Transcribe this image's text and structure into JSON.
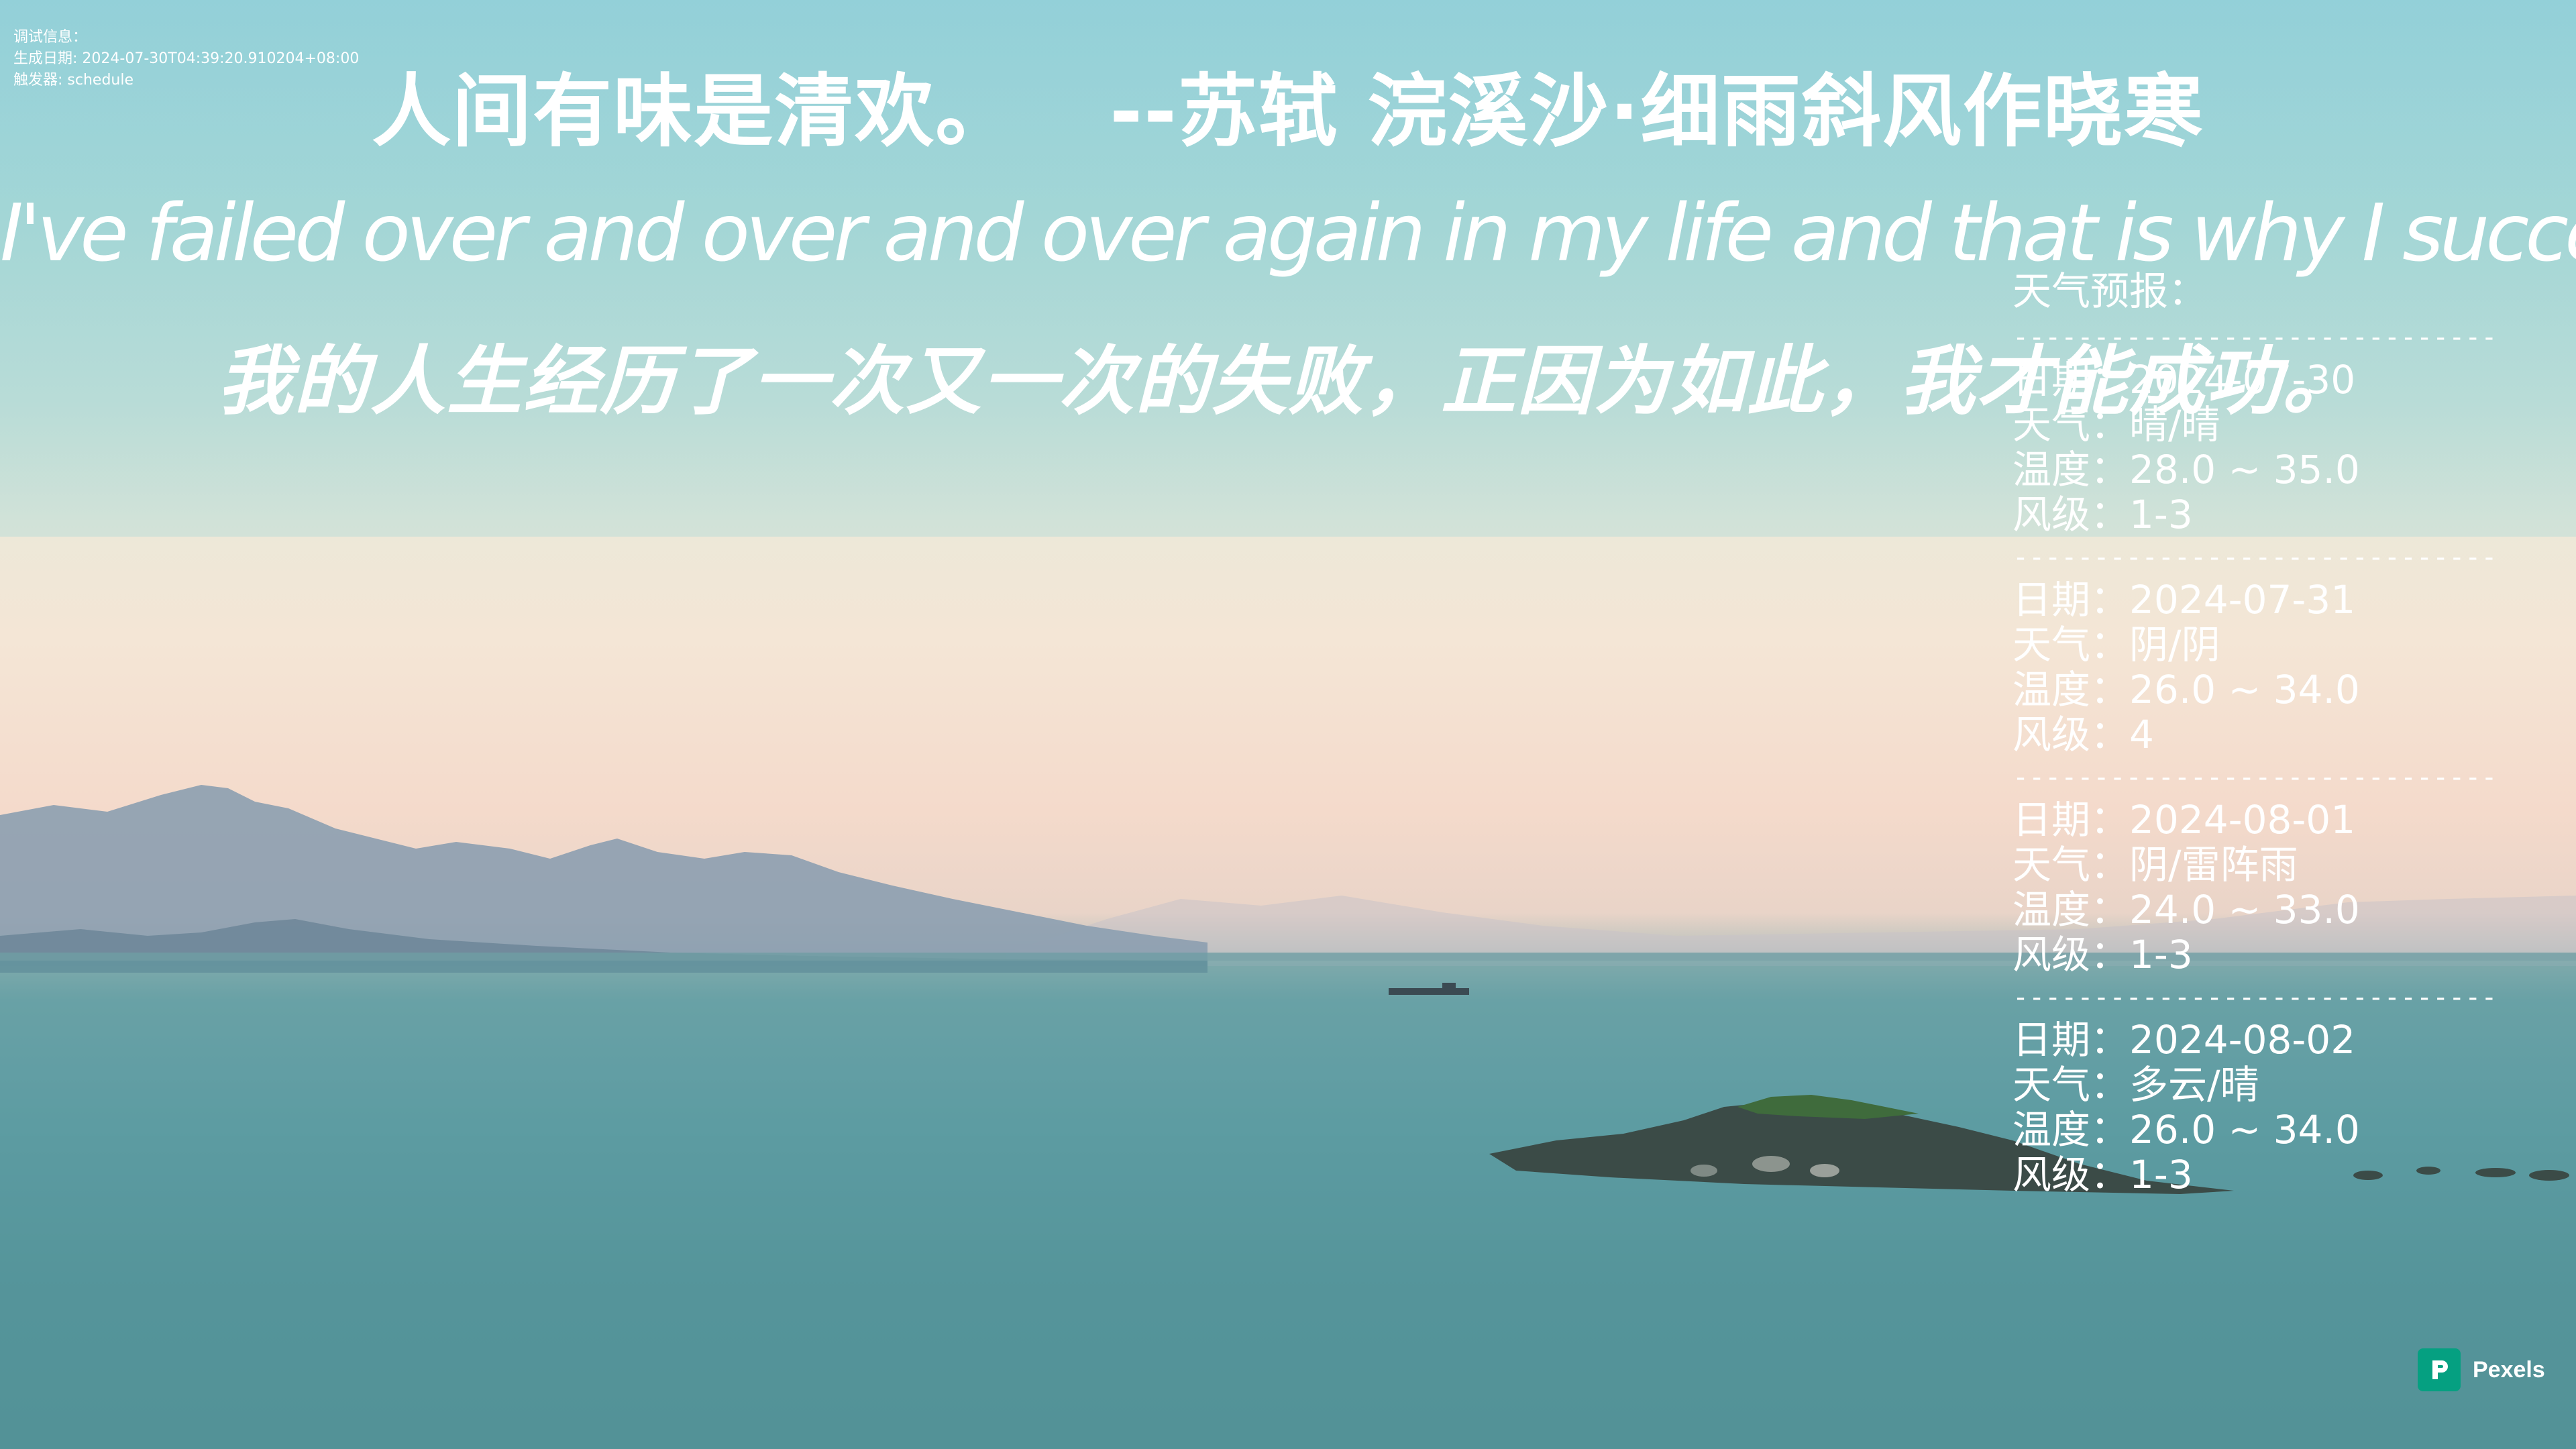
{
  "debug": {
    "heading": "调试信息：",
    "generated_label": "生成日期:",
    "generated_value": "2024-07-30T04:39:20.910204+08:00",
    "trigger_label": "触发器:",
    "trigger_value": "schedule"
  },
  "quote": {
    "chinese": "人间有味是清欢。",
    "attribution": "--苏轼 浣溪沙·细雨斜风作晓寒",
    "english": "I've failed over and over and over again in my life and that is why I succeed.",
    "translation": "我的人生经历了一次又一次的失败，正因为如此，我才能成功。"
  },
  "weather": {
    "title": "天气预报：",
    "divider": "------------------------------",
    "labels": {
      "date": "日期",
      "weather": "天气",
      "temperature": "温度",
      "wind": "风级"
    },
    "days": [
      {
        "date": "2024-07-30",
        "weather": "晴/晴",
        "temperature": "28.0 ~ 35.0",
        "wind": "1-3"
      },
      {
        "date": "2024-07-31",
        "weather": "阴/阴",
        "temperature": "26.0 ~ 34.0",
        "wind": "4"
      },
      {
        "date": "2024-08-01",
        "weather": "阴/雷阵雨",
        "temperature": "24.0 ~ 33.0",
        "wind": "1-3"
      },
      {
        "date": "2024-08-02",
        "weather": "多云/晴",
        "temperature": "26.0 ~ 34.0",
        "wind": "1-3"
      }
    ]
  },
  "watermark": {
    "brand": "Pexels",
    "icon": "pexels-logo-icon",
    "color": "#05A081"
  }
}
